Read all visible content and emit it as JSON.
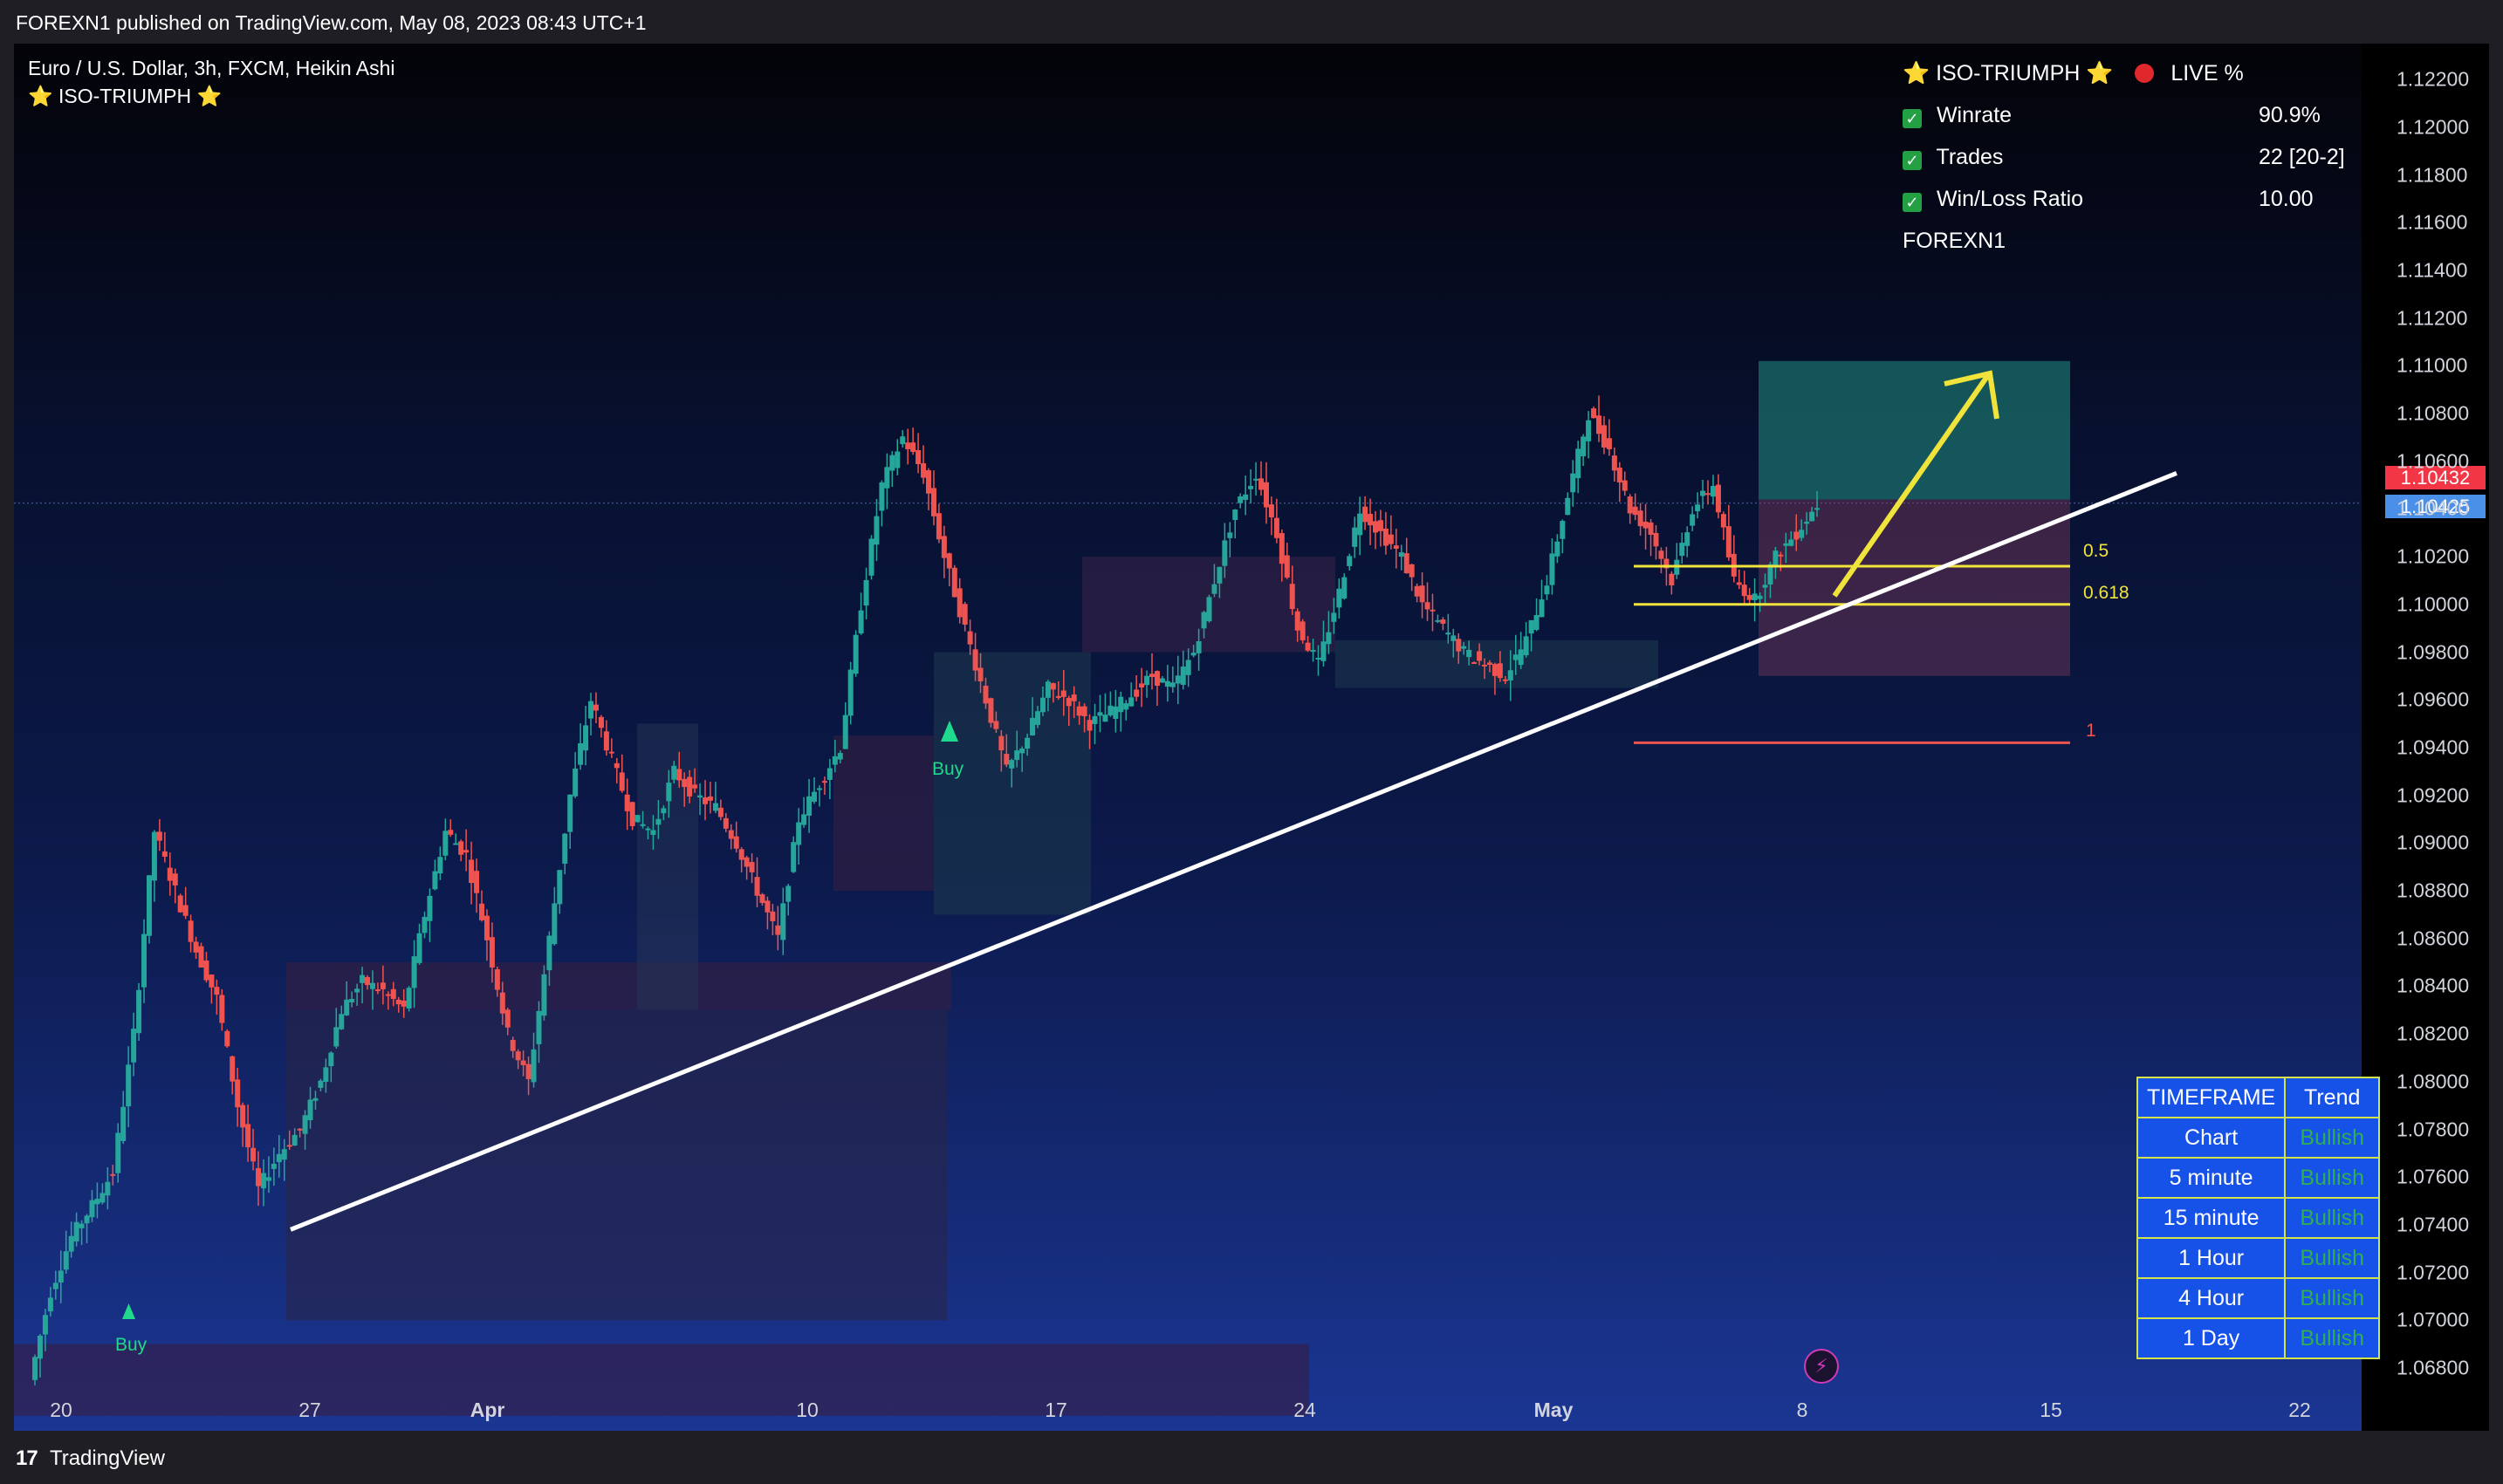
{
  "header": {
    "publish_line": "FOREXN1 published on TradingView.com, May 08, 2023 08:43 UTC+1"
  },
  "legend": {
    "symbol_line": "Euro / U.S. Dollar, 3h, FXCM, Heikin Ashi",
    "indicator": "⭐ ISO-TRIUMPH ⭐"
  },
  "stats_panel": {
    "title": "⭐ ISO-TRIUMPH ⭐",
    "live": "LIVE %",
    "rows": [
      {
        "label": "Winrate",
        "value": "90.9%"
      },
      {
        "label": "Trades",
        "value": "22 [20-2]"
      },
      {
        "label": "Win/Loss Ratio",
        "value": "10.00"
      }
    ],
    "author": "FOREXN1"
  },
  "price_tags": {
    "last": "1.10432",
    "current": "1.10425",
    "last_color": "#f23645",
    "current_color": "#4a8fe8"
  },
  "fib_levels": {
    "l1": "0.5",
    "l2": "0.618",
    "l3": "1"
  },
  "signals": {
    "buy1": "Buy",
    "buy2": "Buy"
  },
  "trend_table": {
    "header": {
      "col1": "TIMEFRAME",
      "col2": "Trend"
    },
    "rows": [
      {
        "tf": "Chart",
        "trend": "Bullish"
      },
      {
        "tf": "5 minute",
        "trend": "Bullish"
      },
      {
        "tf": "15 minute",
        "trend": "Bullish"
      },
      {
        "tf": "1 Hour",
        "trend": "Bullish"
      },
      {
        "tf": "4 Hour",
        "trend": "Bullish"
      },
      {
        "tf": "1 Day",
        "trend": "Bullish"
      }
    ]
  },
  "footer": {
    "brand": "TradingView"
  },
  "icons": {
    "logo": "tradingview-logo-icon",
    "bolt": "lightning-bolt-icon"
  },
  "chart_data": {
    "type": "candlestick",
    "title": "Euro / U.S. Dollar, 3h, FXCM, Heikin Ashi",
    "y_ticks": [
      "1.06800",
      "1.07000",
      "1.07200",
      "1.07400",
      "1.07600",
      "1.07800",
      "1.08000",
      "1.08200",
      "1.08400",
      "1.08600",
      "1.08800",
      "1.09000",
      "1.09200",
      "1.09400",
      "1.09600",
      "1.09800",
      "1.10000",
      "1.10200",
      "1.10400",
      "1.10600",
      "1.10800",
      "1.11000",
      "1.11200",
      "1.11400",
      "1.11600",
      "1.11800",
      "1.12000",
      "1.12200"
    ],
    "x_ticks": [
      {
        "label": "20",
        "bold": false
      },
      {
        "label": "27",
        "bold": false
      },
      {
        "label": "Apr",
        "bold": true
      },
      {
        "label": "10",
        "bold": false
      },
      {
        "label": "17",
        "bold": false
      },
      {
        "label": "24",
        "bold": false
      },
      {
        "label": "May",
        "bold": true
      },
      {
        "label": "8",
        "bold": false
      },
      {
        "label": "15",
        "bold": false
      },
      {
        "label": "22",
        "bold": false
      }
    ],
    "ylim": [
      1.066,
      1.124
    ],
    "last_price": 1.10432,
    "current_price": 1.10425,
    "up_color": "#26a69a",
    "down_color": "#ef5350",
    "path": [
      1.0675,
      1.0712,
      1.0735,
      1.0748,
      1.0762,
      1.082,
      1.0905,
      1.088,
      1.0855,
      1.0835,
      1.079,
      1.0755,
      1.077,
      1.078,
      1.08,
      1.083,
      1.0842,
      1.0838,
      1.083,
      1.087,
      1.0905,
      1.0895,
      1.086,
      1.082,
      1.08,
      1.086,
      1.092,
      1.096,
      1.0935,
      1.091,
      1.0905,
      1.093,
      1.092,
      1.0915,
      1.09,
      1.088,
      1.086,
      1.091,
      1.0925,
      1.094,
      1.1,
      1.105,
      1.107,
      1.1055,
      1.102,
      1.099,
      1.096,
      1.093,
      1.0945,
      1.0965,
      1.096,
      1.095,
      1.0955,
      1.0962,
      1.097,
      1.0965,
      1.098,
      1.101,
      1.104,
      1.1055,
      1.103,
      1.099,
      1.0975,
      1.1005,
      1.104,
      1.103,
      1.102,
      1.1,
      1.099,
      1.098,
      1.0975,
      1.097,
      1.0985,
      1.101,
      1.1045,
      1.108,
      1.1065,
      1.104,
      1.103,
      1.101,
      1.104,
      1.105,
      1.101,
      1.1002,
      1.102,
      1.103,
      1.1042
    ],
    "trendline": {
      "from": {
        "date": "Mar 27",
        "price": 1.0738
      },
      "to": {
        "date": "May 11",
        "price": 1.1055
      }
    },
    "fib_prices": {
      "0.5": 1.1016,
      "0.618": 1.1,
      "1": 1.0942
    },
    "position": {
      "entry": 1.1044,
      "target": 1.1102,
      "stop": 1.097
    }
  }
}
